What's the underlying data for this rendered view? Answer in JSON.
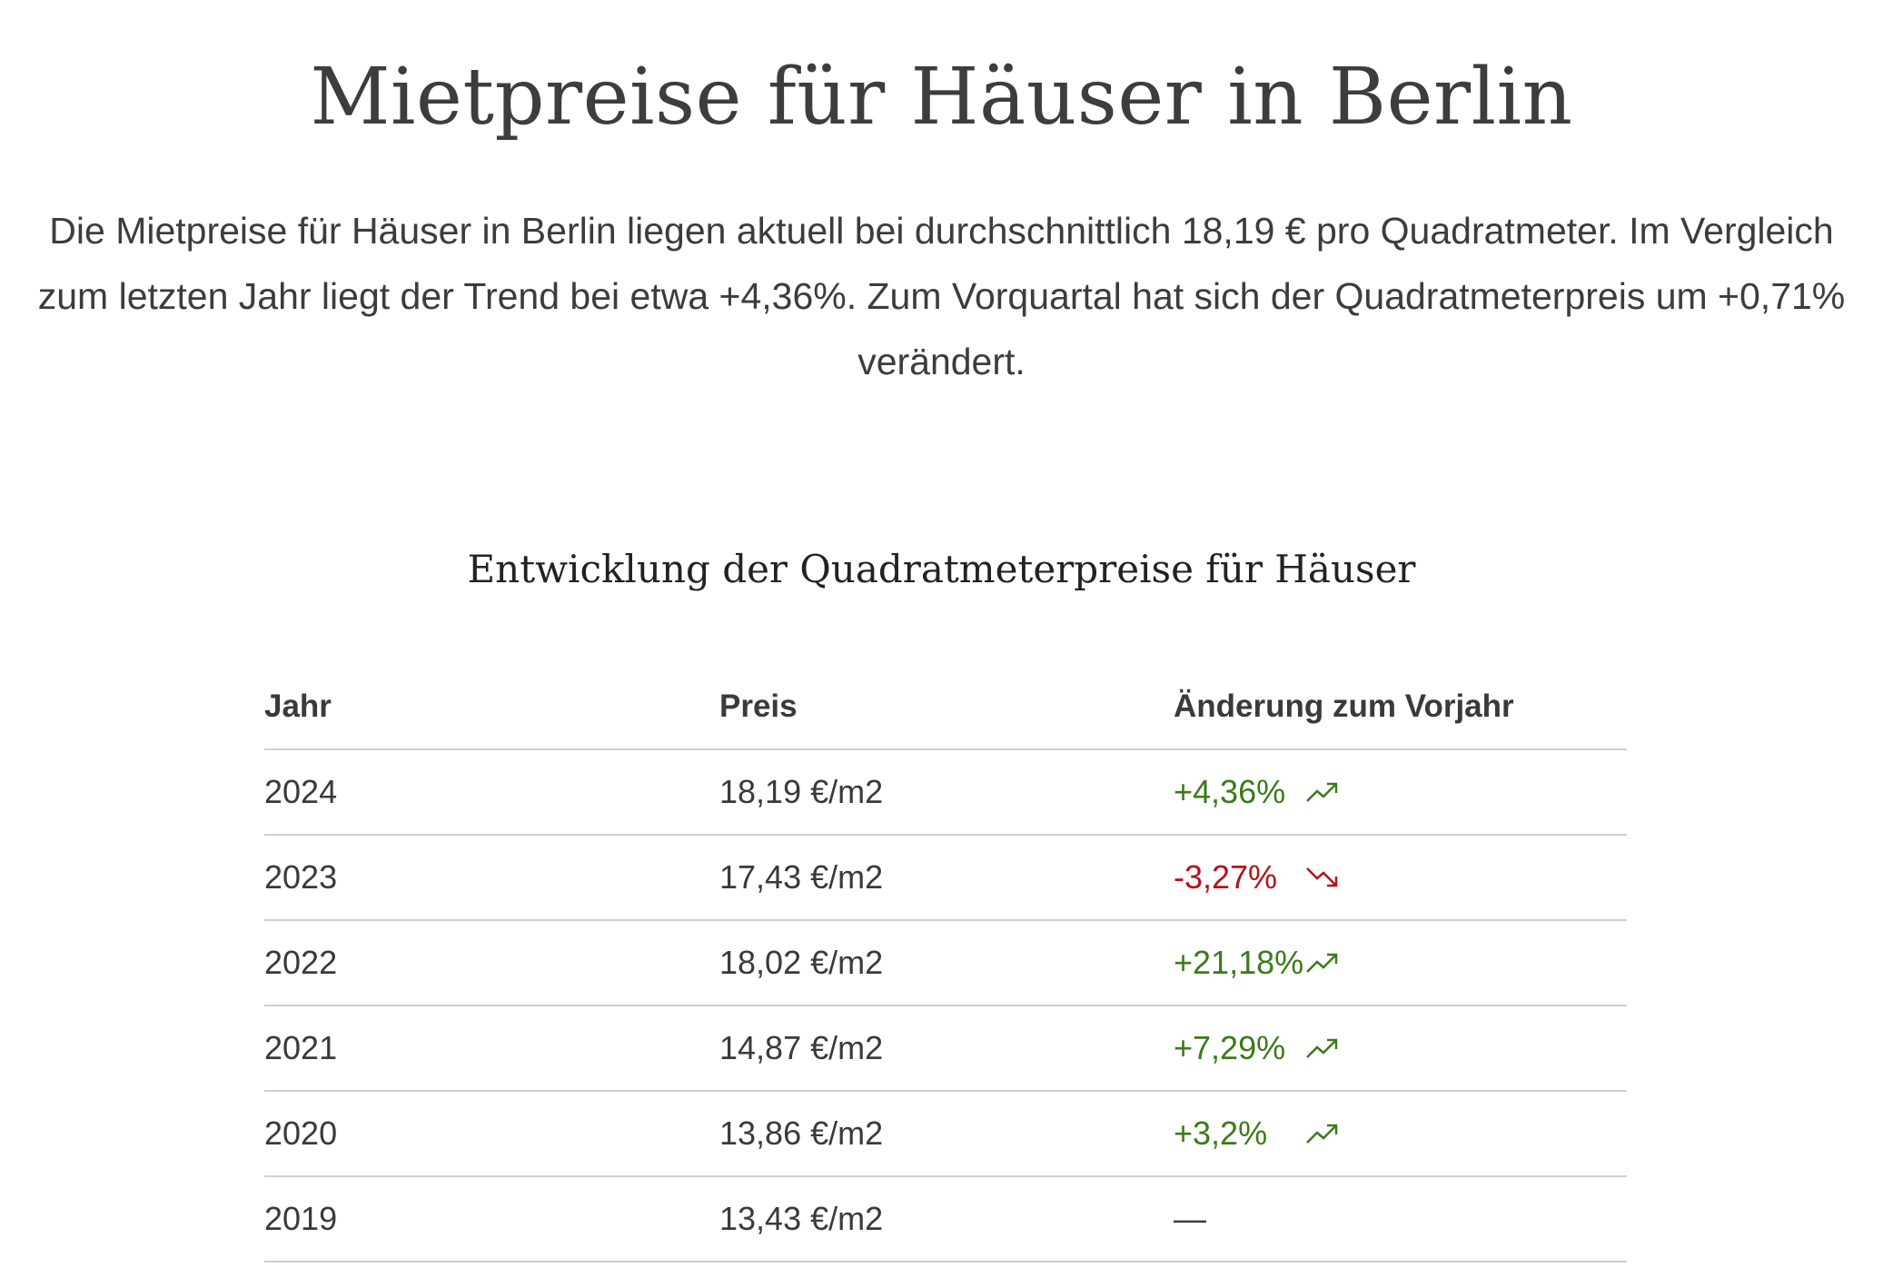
{
  "page": {
    "title": "Mietpreise für Häuser in Berlin",
    "intro": "Die Mietpreise für Häuser in Berlin liegen aktuell bei durchschnittlich 18,19 € pro Quadratmeter. Im Vergleich zum letzten Jahr liegt der Trend bei etwa +4,36%. Zum Vorquartal hat sich der Quadratmeterpreis um +0,71% verändert."
  },
  "section": {
    "title": "Entwicklung der Quadratmeterpreise für Häuser"
  },
  "table": {
    "headers": {
      "year": "Jahr",
      "price": "Preis",
      "change": "Änderung zum Vorjahr"
    },
    "rows": [
      {
        "year": "2024",
        "price": "18,19 €/m2",
        "change": "+4,36%",
        "trend": "trend-up-icon"
      },
      {
        "year": "2023",
        "price": "17,43 €/m2",
        "change": "-3,27%",
        "trend": "trend-down-icon"
      },
      {
        "year": "2022",
        "price": "18,02 €/m2",
        "change": "+21,18%",
        "trend": "trend-up-icon"
      },
      {
        "year": "2021",
        "price": "14,87 €/m2",
        "change": "+7,29%",
        "trend": "trend-up-icon"
      },
      {
        "year": "2020",
        "price": "13,86 €/m2",
        "change": "+3,2%",
        "trend": "trend-up-icon"
      },
      {
        "year": "2019",
        "price": "13,43 €/m2",
        "change": "—",
        "trend": ""
      }
    ]
  },
  "colors": {
    "positive": "#3c7a1a",
    "negative": "#b3121a",
    "divider": "#cfcfcf"
  }
}
